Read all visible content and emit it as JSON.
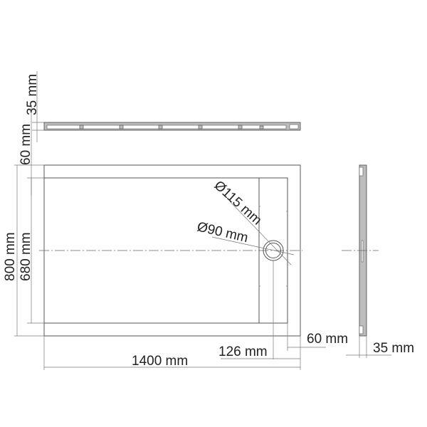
{
  "dimensions": {
    "top_section_height": "35 mm",
    "top_rim_width": "60 mm",
    "overall_width_mm": "800 mm",
    "inner_width_mm": "680 mm",
    "overall_length": "1400 mm",
    "drain_offset": "126 mm",
    "right_rim_width": "60 mm",
    "side_section_height": "35 mm",
    "drain_outer_diameter": "Ø115 mm",
    "drain_inner_diameter": "Ø90 mm"
  },
  "colors": {
    "line": "#555555",
    "hatch": "#bdbdbd"
  }
}
